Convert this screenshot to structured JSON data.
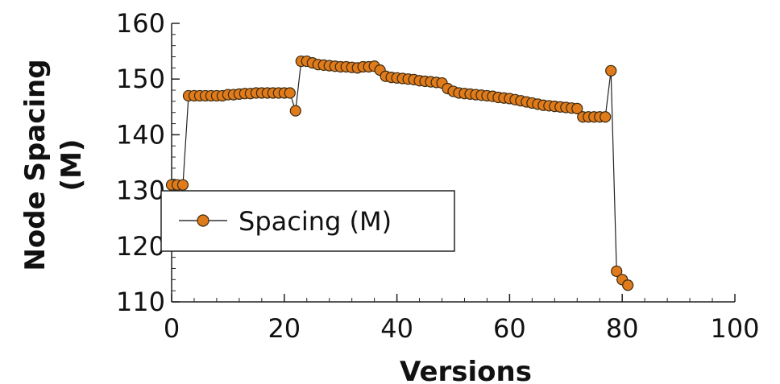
{
  "chart_data": {
    "type": "line",
    "xlabel": "Versions",
    "ylabel_lines": [
      "Node Spacing",
      "(M)"
    ],
    "xlim": [
      0,
      100
    ],
    "ylim": [
      110,
      160
    ],
    "xticks": [
      0,
      20,
      40,
      60,
      80,
      100
    ],
    "yticks": [
      110,
      120,
      130,
      140,
      150,
      160
    ],
    "grid": false,
    "legend_position": "center-left",
    "series": [
      {
        "name": "Spacing (M)",
        "color": "#e07b1c",
        "edge_color": "#3a2a10",
        "x": [
          0,
          1,
          2,
          3,
          4,
          5,
          6,
          7,
          8,
          9,
          10,
          11,
          12,
          13,
          14,
          15,
          16,
          17,
          18,
          19,
          20,
          21,
          22,
          23,
          24,
          25,
          26,
          27,
          28,
          29,
          30,
          31,
          32,
          33,
          34,
          35,
          36,
          37,
          38,
          39,
          40,
          41,
          42,
          43,
          44,
          45,
          46,
          47,
          48,
          49,
          50,
          51,
          52,
          53,
          54,
          55,
          56,
          57,
          58,
          59,
          60,
          61,
          62,
          63,
          64,
          65,
          66,
          67,
          68,
          69,
          70,
          71,
          72,
          73,
          74,
          75,
          76,
          77,
          78,
          79,
          80,
          81
        ],
        "y": [
          131,
          131,
          131,
          147,
          147,
          147,
          147,
          147,
          147,
          147,
          147.2,
          147.2,
          147.3,
          147.4,
          147.4,
          147.5,
          147.5,
          147.5,
          147.5,
          147.5,
          147.5,
          147.5,
          144.3,
          153.2,
          153.2,
          152.9,
          152.6,
          152.5,
          152.4,
          152.3,
          152.2,
          152.2,
          152.1,
          152.0,
          152.2,
          152.2,
          152.3,
          151.6,
          150.5,
          150.3,
          150.2,
          150.1,
          150.0,
          149.9,
          149.7,
          149.6,
          149.5,
          149.4,
          149.3,
          148.3,
          147.8,
          147.5,
          147.4,
          147.3,
          147.2,
          147.1,
          147.0,
          146.9,
          146.7,
          146.6,
          146.5,
          146.3,
          146.1,
          145.9,
          145.7,
          145.5,
          145.3,
          145.2,
          145.1,
          145.0,
          144.9,
          144.8,
          144.7,
          143.2,
          143.2,
          143.2,
          143.2,
          143.2,
          151.5,
          115.5,
          114,
          113
        ]
      }
    ]
  }
}
